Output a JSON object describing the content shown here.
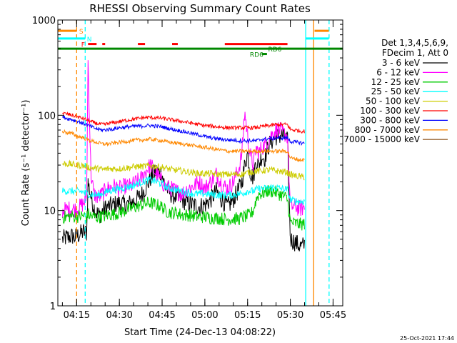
{
  "chart_data": {
    "type": "line",
    "title": "RHESSI Observing Summary Count Rates",
    "xlabel": "Start Time (24-Dec-13 04:08:22)",
    "ylabel": "Count Rate (s⁻¹ detector⁻¹)",
    "yscale": "log",
    "ylim": [
      1,
      1000
    ],
    "xlim_minutes": [
      248.4,
      348.4
    ],
    "x_ticks": [
      {
        "label": "04:15",
        "minutes": 255
      },
      {
        "label": "04:30",
        "minutes": 270
      },
      {
        "label": "04:45",
        "minutes": 285
      },
      {
        "label": "05:00",
        "minutes": 300
      },
      {
        "label": "05:15",
        "minutes": 315
      },
      {
        "label": "05:30",
        "minutes": 330
      },
      {
        "label": "05:45",
        "minutes": 345
      }
    ],
    "y_ticks": [
      {
        "label": "1",
        "value": 1
      },
      {
        "label": "10",
        "value": 10
      },
      {
        "label": "100",
        "value": 100
      },
      {
        "label": "1000",
        "value": 1000
      }
    ],
    "legend_title": [
      "Det 1,3,4,5,6,9,",
      "FDecim 1, Att 0"
    ],
    "legend_position": "right",
    "series": [
      {
        "name": "3 - 6 keV",
        "color": "#000000",
        "x": [
          250,
          251.5,
          253.5,
          254.5,
          255.5,
          257.5,
          258.5,
          259,
          260,
          261,
          262,
          263,
          264,
          265,
          266,
          268,
          270,
          272,
          274,
          276,
          278,
          280,
          281,
          283,
          285,
          286,
          288,
          290,
          292,
          294,
          296,
          298,
          300,
          302,
          304,
          306,
          308,
          310,
          312,
          313,
          314,
          315,
          316,
          317,
          318,
          319,
          320,
          321,
          322,
          323,
          324,
          325,
          326,
          327,
          328,
          329,
          330,
          331,
          332,
          333,
          334,
          335
        ],
        "y": [
          5,
          5.2,
          5.4,
          5.2,
          5.5,
          6,
          5.8,
          20,
          14,
          11,
          9.5,
          9,
          9.8,
          10.5,
          11,
          11.5,
          12,
          11.5,
          12,
          13,
          15,
          19,
          22,
          26,
          24,
          18,
          15,
          14,
          13,
          12,
          11.5,
          11,
          11.5,
          13,
          16,
          13,
          11,
          13,
          17,
          20,
          30,
          40,
          25,
          22,
          34,
          30,
          38,
          35,
          45,
          52,
          55,
          60,
          60,
          62,
          58,
          55,
          5,
          4.8,
          4.6,
          4.3,
          4.2,
          4.4
        ]
      },
      {
        "name": "6 - 12 keV",
        "color": "#ff00ff",
        "x": [
          250,
          251.5,
          253.5,
          254.5,
          255.5,
          257.5,
          258.5,
          259,
          260,
          261,
          262,
          263,
          264,
          265,
          266,
          268,
          270,
          272,
          274,
          276,
          278,
          280,
          281,
          283,
          285,
          286,
          288,
          290,
          292,
          294,
          296,
          298,
          300,
          302,
          304,
          306,
          308,
          310,
          312,
          313,
          314,
          315,
          316,
          317,
          318,
          319,
          320,
          321,
          322,
          323,
          324,
          325,
          326,
          327,
          328,
          329,
          330,
          331,
          332,
          333,
          334,
          335
        ],
        "y": [
          10,
          10.2,
          10.5,
          10.3,
          10.5,
          12,
          14,
          380,
          25,
          15,
          14,
          14,
          15,
          16,
          17,
          18,
          17,
          18,
          18,
          20,
          22,
          28,
          30,
          24,
          20,
          18,
          17,
          16,
          15,
          17,
          18,
          20,
          17,
          20,
          24,
          19,
          17,
          20,
          28,
          40,
          110,
          60,
          38,
          30,
          45,
          40,
          46,
          48,
          55,
          60,
          65,
          70,
          72,
          66,
          64,
          60,
          11,
          11,
          11,
          10.5,
          10.5,
          10.8
        ]
      },
      {
        "name": "12 - 25 keV",
        "color": "#00cc00",
        "x": [
          250,
          251.5,
          253.5,
          254.5,
          255.5,
          257.5,
          258.5,
          259,
          260,
          261,
          262,
          263,
          264,
          265,
          266,
          268,
          270,
          272,
          274,
          276,
          278,
          280,
          281,
          283,
          285,
          286,
          288,
          290,
          292,
          294,
          296,
          298,
          300,
          302,
          304,
          306,
          308,
          310,
          312,
          313,
          314,
          315,
          316,
          317,
          318,
          319,
          320,
          321,
          322,
          323,
          324,
          325,
          326,
          327,
          328,
          329,
          330,
          331,
          332,
          333,
          334,
          335
        ],
        "y": [
          8.5,
          8.6,
          8.8,
          8.6,
          8.7,
          8.8,
          8.5,
          9.2,
          8.8,
          8.6,
          8.5,
          8.6,
          8.7,
          8.8,
          9,
          9.2,
          9.5,
          10,
          10.5,
          11,
          11.5,
          12,
          12,
          11.5,
          11,
          10,
          9.5,
          9.5,
          9,
          9,
          8.8,
          8.6,
          8.6,
          8.4,
          8.4,
          8.2,
          8.1,
          8.2,
          8.2,
          8.4,
          8.6,
          8.8,
          9,
          10,
          13,
          15,
          15,
          15.5,
          16,
          16,
          16,
          15.5,
          15,
          14.5,
          14,
          13,
          7.5,
          7.4,
          7.3,
          7.2,
          7.2,
          7.3
        ]
      },
      {
        "name": "25 - 50 keV",
        "color": "#00ffff",
        "x": [
          250,
          251.5,
          253.5,
          254.5,
          255.5,
          257.5,
          258.5,
          259,
          260,
          261,
          262,
          263,
          264,
          265,
          266,
          268,
          270,
          272,
          274,
          276,
          278,
          280,
          281,
          283,
          285,
          286,
          288,
          290,
          292,
          294,
          296,
          298,
          300,
          302,
          304,
          306,
          308,
          310,
          312,
          313,
          314,
          315,
          316,
          317,
          318,
          319,
          320,
          321,
          322,
          323,
          324,
          325,
          326,
          327,
          328,
          329,
          330,
          331,
          332,
          333,
          334,
          335
        ],
        "y": [
          16,
          16,
          16,
          15.8,
          16,
          15.6,
          15.2,
          15,
          14.8,
          14.6,
          14.5,
          14.6,
          15,
          15.5,
          16,
          16.5,
          17,
          17.5,
          18,
          19,
          20,
          21,
          21,
          20,
          19,
          18,
          17,
          16.5,
          16,
          15.5,
          15,
          15,
          15,
          14.8,
          14.6,
          14.5,
          14.5,
          14.7,
          15,
          15.2,
          15.5,
          16,
          16,
          16,
          16.5,
          17,
          17,
          17,
          17.2,
          17.5,
          17.5,
          17.4,
          17.2,
          17,
          16.8,
          16.5,
          13,
          12.8,
          12.6,
          12.5,
          12.4,
          12.6
        ]
      },
      {
        "name": "50 - 100 keV",
        "color": "#cccc00",
        "x": [
          250,
          251.5,
          253.5,
          254.5,
          255.5,
          257.5,
          258.5,
          259,
          260,
          261,
          262,
          263,
          264,
          265,
          266,
          268,
          270,
          272,
          274,
          276,
          278,
          280,
          281,
          283,
          285,
          286,
          288,
          290,
          292,
          294,
          296,
          298,
          300,
          302,
          304,
          306,
          308,
          310,
          312,
          313,
          314,
          315,
          316,
          317,
          318,
          319,
          320,
          321,
          322,
          323,
          324,
          325,
          326,
          327,
          328,
          329,
          330,
          331,
          332,
          333,
          334,
          335
        ],
        "y": [
          31,
          31,
          30.5,
          30,
          30,
          29.5,
          29,
          28.5,
          28,
          28,
          27.5,
          27.5,
          27,
          27,
          27.5,
          27.5,
          27.5,
          28,
          28.5,
          29,
          29,
          29.5,
          29.5,
          29,
          28.5,
          28,
          27,
          26.5,
          26,
          25.5,
          25,
          24.5,
          24.5,
          24.5,
          24,
          24,
          24,
          24,
          24,
          24,
          24.5,
          25,
          25.5,
          25.5,
          26,
          26,
          26,
          26.5,
          26.5,
          26.5,
          26.5,
          26,
          26,
          25.5,
          25.5,
          25,
          24,
          23.5,
          23,
          23,
          22.5,
          22.5
        ]
      },
      {
        "name": "100 - 300 keV",
        "color": "#ff0000",
        "x": [
          250,
          251.5,
          253.5,
          254.5,
          255.5,
          257.5,
          258.5,
          259,
          260,
          261,
          262,
          263,
          264,
          265,
          266,
          268,
          270,
          272,
          274,
          276,
          278,
          280,
          281,
          283,
          285,
          286,
          288,
          290,
          292,
          294,
          296,
          298,
          300,
          302,
          304,
          306,
          308,
          310,
          312,
          313,
          314,
          315,
          316,
          317,
          318,
          319,
          320,
          321,
          322,
          323,
          324,
          325,
          326,
          327,
          328,
          329,
          330,
          331,
          332,
          333,
          334,
          335
        ],
        "y": [
          105,
          103,
          100,
          98,
          96,
          92,
          90,
          88,
          86,
          84,
          82,
          81,
          80,
          80,
          82,
          84,
          86,
          88,
          90,
          92,
          94,
          95,
          95,
          94,
          93,
          92,
          90,
          88,
          86,
          84,
          82,
          80,
          78,
          77,
          76,
          75,
          74,
          74,
          74,
          74,
          74,
          74,
          74,
          74,
          74,
          75,
          76,
          77,
          78,
          78,
          79,
          80,
          80,
          80,
          80,
          80,
          71,
          70,
          70,
          69,
          68,
          68
        ]
      },
      {
        "name": "300 - 800 keV",
        "color": "#0000ff",
        "x": [
          250,
          251.5,
          253.5,
          254.5,
          255.5,
          257.5,
          258.5,
          259,
          260,
          261,
          262,
          263,
          264,
          265,
          266,
          268,
          270,
          272,
          274,
          276,
          278,
          280,
          281,
          283,
          285,
          286,
          288,
          290,
          292,
          294,
          296,
          298,
          300,
          302,
          304,
          306,
          308,
          310,
          312,
          313,
          314,
          315,
          316,
          317,
          318,
          319,
          320,
          321,
          322,
          323,
          324,
          325,
          326,
          327,
          328,
          329,
          330,
          331,
          332,
          333,
          334,
          335
        ],
        "y": [
          96,
          93,
          90,
          88,
          86,
          82,
          80,
          78,
          76,
          74,
          72,
          71,
          70,
          70,
          71,
          72,
          74,
          75,
          76,
          77,
          77,
          78,
          78,
          77,
          76,
          74,
          72,
          70,
          68,
          66,
          64,
          62,
          60,
          58,
          57,
          56,
          55,
          55,
          54,
          54,
          54,
          54,
          54,
          54,
          54,
          55,
          56,
          56,
          57,
          57,
          57,
          58,
          58,
          58,
          58,
          58,
          53,
          53,
          52,
          52,
          51,
          51
        ]
      },
      {
        "name": "800 - 7000 keV",
        "color": "#ff8800",
        "x": [
          250,
          251.5,
          253.5,
          254.5,
          255.5,
          257.5,
          258.5,
          259,
          260,
          261,
          262,
          263,
          264,
          265,
          266,
          268,
          270,
          272,
          274,
          276,
          278,
          280,
          281,
          283,
          285,
          286,
          288,
          290,
          292,
          294,
          296,
          298,
          300,
          302,
          304,
          306,
          308,
          310,
          312,
          313,
          314,
          315,
          316,
          317,
          318,
          319,
          320,
          321,
          322,
          323,
          324,
          325,
          326,
          327,
          328,
          329,
          330,
          331,
          332,
          333,
          334,
          335
        ],
        "y": [
          68,
          66,
          64,
          62,
          60,
          58,
          56,
          55,
          54,
          53,
          52,
          51,
          50,
          50,
          50,
          51,
          52,
          53,
          54,
          55,
          55,
          56,
          56,
          55,
          54,
          53,
          52,
          51,
          50,
          49,
          48,
          47,
          46,
          45,
          44,
          43,
          42,
          42,
          42,
          42,
          42,
          42,
          42,
          42,
          42,
          42,
          42,
          42,
          42,
          42,
          42,
          42,
          42,
          42,
          42,
          42,
          36,
          35,
          35,
          34,
          34,
          34
        ]
      },
      {
        "name": "7000 - 15000 keV",
        "color": "#996633",
        "x": [],
        "y": []
      }
    ],
    "vertical_lines": [
      {
        "minutes": 255.0,
        "color": "#ff8800",
        "style": "dashed"
      },
      {
        "minutes": 258.0,
        "color": "#00ffff",
        "style": "dashed"
      },
      {
        "minutes": 335.4,
        "color": "#00ffff",
        "style": "solid"
      },
      {
        "minutes": 338.2,
        "color": "#ff8800",
        "style": "solid"
      },
      {
        "minutes": 343.6,
        "color": "#00ffff",
        "style": "dashed"
      }
    ],
    "flag_bars": [
      {
        "label": "S",
        "color": "#ff8800",
        "y": 770,
        "segments": [
          [
            248.4,
            255
          ],
          [
            338.5,
            343.5
          ]
        ]
      },
      {
        "label": "N",
        "color": "#00ffff",
        "y": 640,
        "segments": [
          [
            248.4,
            258
          ],
          [
            335.4,
            343.5
          ]
        ]
      },
      {
        "label": "F",
        "color": "#ff0000",
        "y": 560,
        "segments": [
          [
            259,
            262
          ],
          [
            264,
            265
          ],
          [
            276.5,
            279
          ],
          [
            288.5,
            290.5
          ],
          [
            307,
            329
          ]
        ]
      },
      {
        "label": "",
        "color": "#008800",
        "y": 500,
        "segments": [
          [
            248.4,
            348.4
          ]
        ]
      },
      {
        "label": "RD6",
        "color": "#008800",
        "y": 440,
        "segments": [
          [
            320,
            321.8
          ]
        ]
      }
    ],
    "flag_labels": [
      "S",
      "N",
      "F",
      "RD6",
      "RD6"
    ],
    "footer_timestamp": "25-Oct-2021 17:44"
  }
}
